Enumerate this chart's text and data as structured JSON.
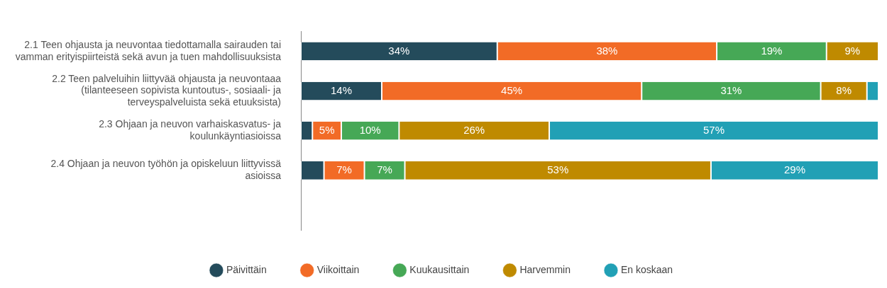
{
  "chart_data": {
    "type": "bar",
    "orientation": "horizontal",
    "stacked": true,
    "xlim": [
      0,
      100
    ],
    "tick_labels": "y",
    "grid": false,
    "legend": "bottom",
    "categories": [
      "2.1 Teen ohjausta ja neuvontaa tiedottamalla sairauden tai vamman erityispiirteistä sekä avun ja tuen mahdollisuuksista",
      "2.2 Teen palveluihin liittyvää ohjausta ja neuvontaaa (tilanteeseen sopivista kuntoutus-, sosiaali- ja terveyspalveluista sekä etuuksista)",
      "2.3 Ohjaan ja neuvon varhaiskasvatus- ja koulunkäyntiasioissa",
      "2.4 Ohjaan ja neuvon työhön ja opiskeluun liittyvissä asioissa",
      null
    ],
    "series": [
      {
        "name": "Päivittäin",
        "color": "#244b5b",
        "values": [
          34,
          14,
          2,
          4,
          null
        ],
        "value_labels": [
          "34%",
          "14%",
          null,
          null,
          null
        ]
      },
      {
        "name": "Viikoittain",
        "color": "#f26b26",
        "values": [
          38,
          45,
          5,
          7,
          null
        ],
        "value_labels": [
          "38%",
          "45%",
          "5%",
          "7%",
          null
        ]
      },
      {
        "name": "Kuukausittain",
        "color": "#46a856",
        "values": [
          19,
          31,
          10,
          7,
          null
        ],
        "value_labels": [
          "19%",
          "31%",
          "10%",
          "7%",
          null
        ]
      },
      {
        "name": "Harvemmin",
        "color": "#bf8a00",
        "values": [
          9,
          8,
          26,
          53,
          null
        ],
        "value_labels": [
          "9%",
          "8%",
          "26%",
          "53%",
          null
        ]
      },
      {
        "name": "En koskaan",
        "color": "#21a0b5",
        "values": [
          null,
          2,
          57,
          29,
          null
        ],
        "value_labels": [
          null,
          null,
          "57%",
          "29%",
          null
        ]
      }
    ]
  }
}
